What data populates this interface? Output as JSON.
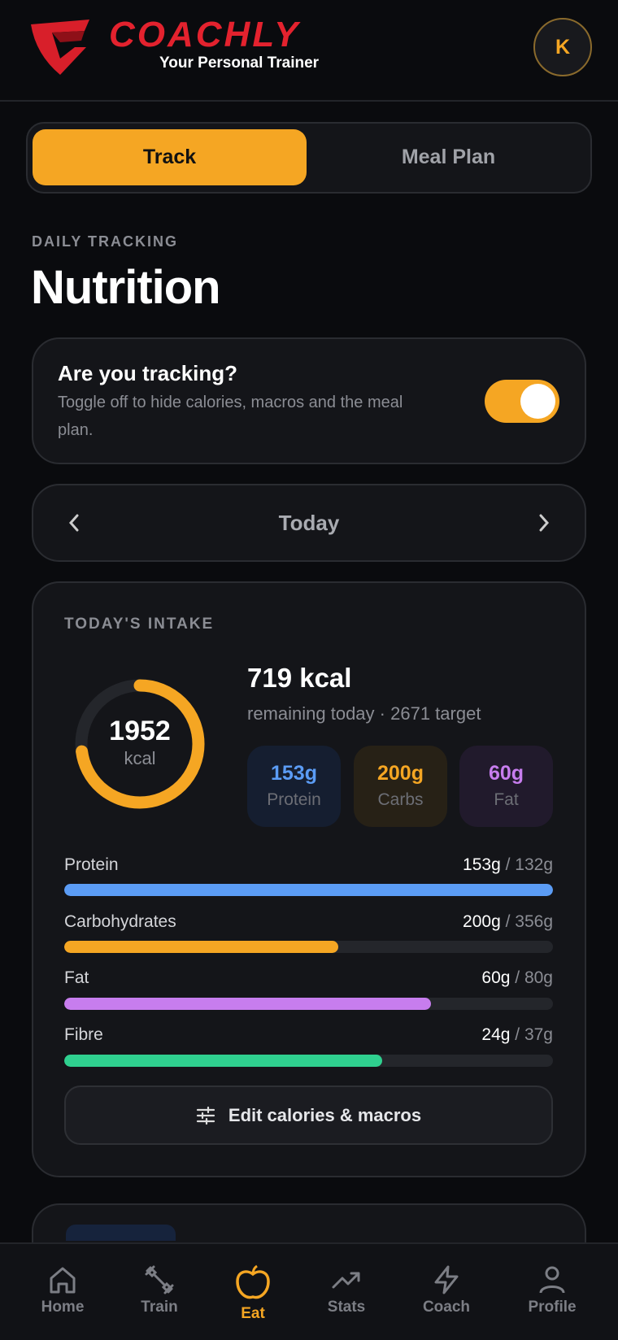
{
  "header": {
    "brand": "COACHLY",
    "tagline": "Your Personal Trainer",
    "avatar": "K"
  },
  "tabs": [
    "Track",
    "Meal Plan"
  ],
  "eyebrow": "DAILY TRACKING",
  "title": "Nutrition",
  "tracking": {
    "title": "Are you tracking?",
    "description": "Toggle off to hide calories, macros and the meal plan."
  },
  "date": "Today",
  "intake": {
    "heading": "TODAY'S INTAKE",
    "consumed": "1952",
    "consumed_unit": "kcal",
    "remaining": "719 kcal",
    "remaining_note": "remaining today",
    "separator": "·",
    "target": "2671 target",
    "chips": [
      {
        "value": "153g",
        "label": "Protein"
      },
      {
        "value": "200g",
        "label": "Carbs"
      },
      {
        "value": "60g",
        "label": "Fat"
      }
    ],
    "bars": [
      {
        "label": "Protein",
        "current": "153g",
        "target": "/ 132g"
      },
      {
        "label": "Carbohydrates",
        "current": "200g",
        "target": "/ 356g"
      },
      {
        "label": "Fat",
        "current": "60g",
        "target": "/ 80g"
      },
      {
        "label": "Fibre",
        "current": "24g",
        "target": "/ 37g"
      }
    ],
    "edit": "Edit calories & macros"
  },
  "nav": [
    "Home",
    "Train",
    "Eat",
    "Stats",
    "Coach",
    "Profile"
  ]
}
